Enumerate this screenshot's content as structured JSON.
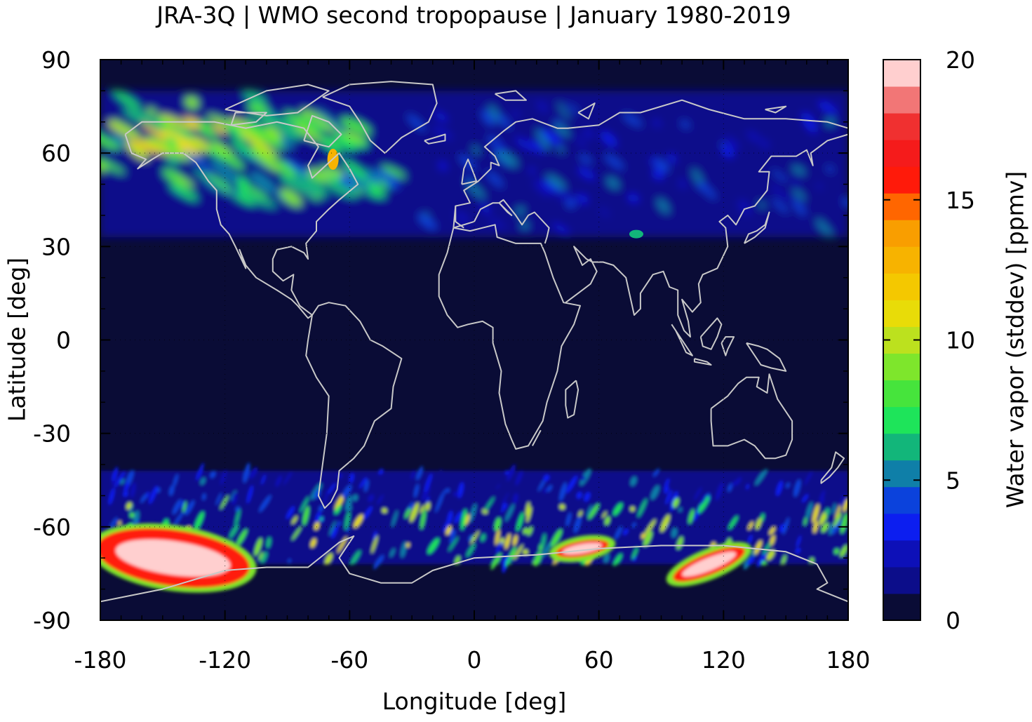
{
  "title": "JRA-3Q | WMO second tropopause | January 1980-2019",
  "chart_data": {
    "type": "heatmap",
    "title": "JRA-3Q | WMO second tropopause | January 1980-2019",
    "xlabel": "Longitude [deg]",
    "ylabel": "Latitude [deg]",
    "xlim": [
      -180,
      180
    ],
    "ylim": [
      -90,
      90
    ],
    "x_ticks": [
      "-180",
      "-120",
      "-60",
      "0",
      "60",
      "120",
      "180"
    ],
    "y_ticks": [
      "90",
      "60",
      "30",
      "0",
      "-30",
      "-60",
      "-90"
    ],
    "x_tick_values": [
      -180,
      -120,
      -60,
      0,
      60,
      120,
      180
    ],
    "y_tick_values": [
      90,
      60,
      30,
      0,
      -30,
      -60,
      -90
    ],
    "colorbar": {
      "label": "Water vapor (stddev) [ppmv]",
      "range": [
        0,
        20
      ],
      "ticks": [
        "0",
        "5",
        "10",
        "15",
        "20"
      ],
      "tick_values": [
        0,
        5,
        10,
        15,
        20
      ],
      "colors": [
        "#0a0c36",
        "#0c0d8a",
        "#0d10b8",
        "#0c1ef0",
        "#0b42dc",
        "#0f7fa8",
        "#12b67a",
        "#1ee45a",
        "#46e43c",
        "#7ee62c",
        "#bce11e",
        "#e8dc08",
        "#f4c800",
        "#f7b300",
        "#f99e00",
        "#ff6600",
        "#ff1a0a",
        "#f51b1b",
        "#f03030",
        "#f27676",
        "#ffcfcf"
      ]
    },
    "features": {
      "background_value": 0.5,
      "coastlines": "light grey",
      "regions": [
        {
          "name": "northern mid-high latitudes",
          "lat_range": [
            33,
            80
          ],
          "value_range": [
            1,
            5
          ]
        },
        {
          "name": "north Pacific / north-east America streaks",
          "lat_range": [
            45,
            75
          ],
          "value_range": [
            5,
            12
          ]
        },
        {
          "name": "southern mid latitudes",
          "lat_range": [
            -70,
            -40
          ],
          "value_range": [
            2,
            12
          ]
        },
        {
          "name": "Antarctic maxima (lon -180 to -110, 40 to 60, 85 to 130)",
          "lat_range": [
            -82,
            -60
          ],
          "value_range": [
            15,
            20
          ]
        }
      ]
    }
  }
}
